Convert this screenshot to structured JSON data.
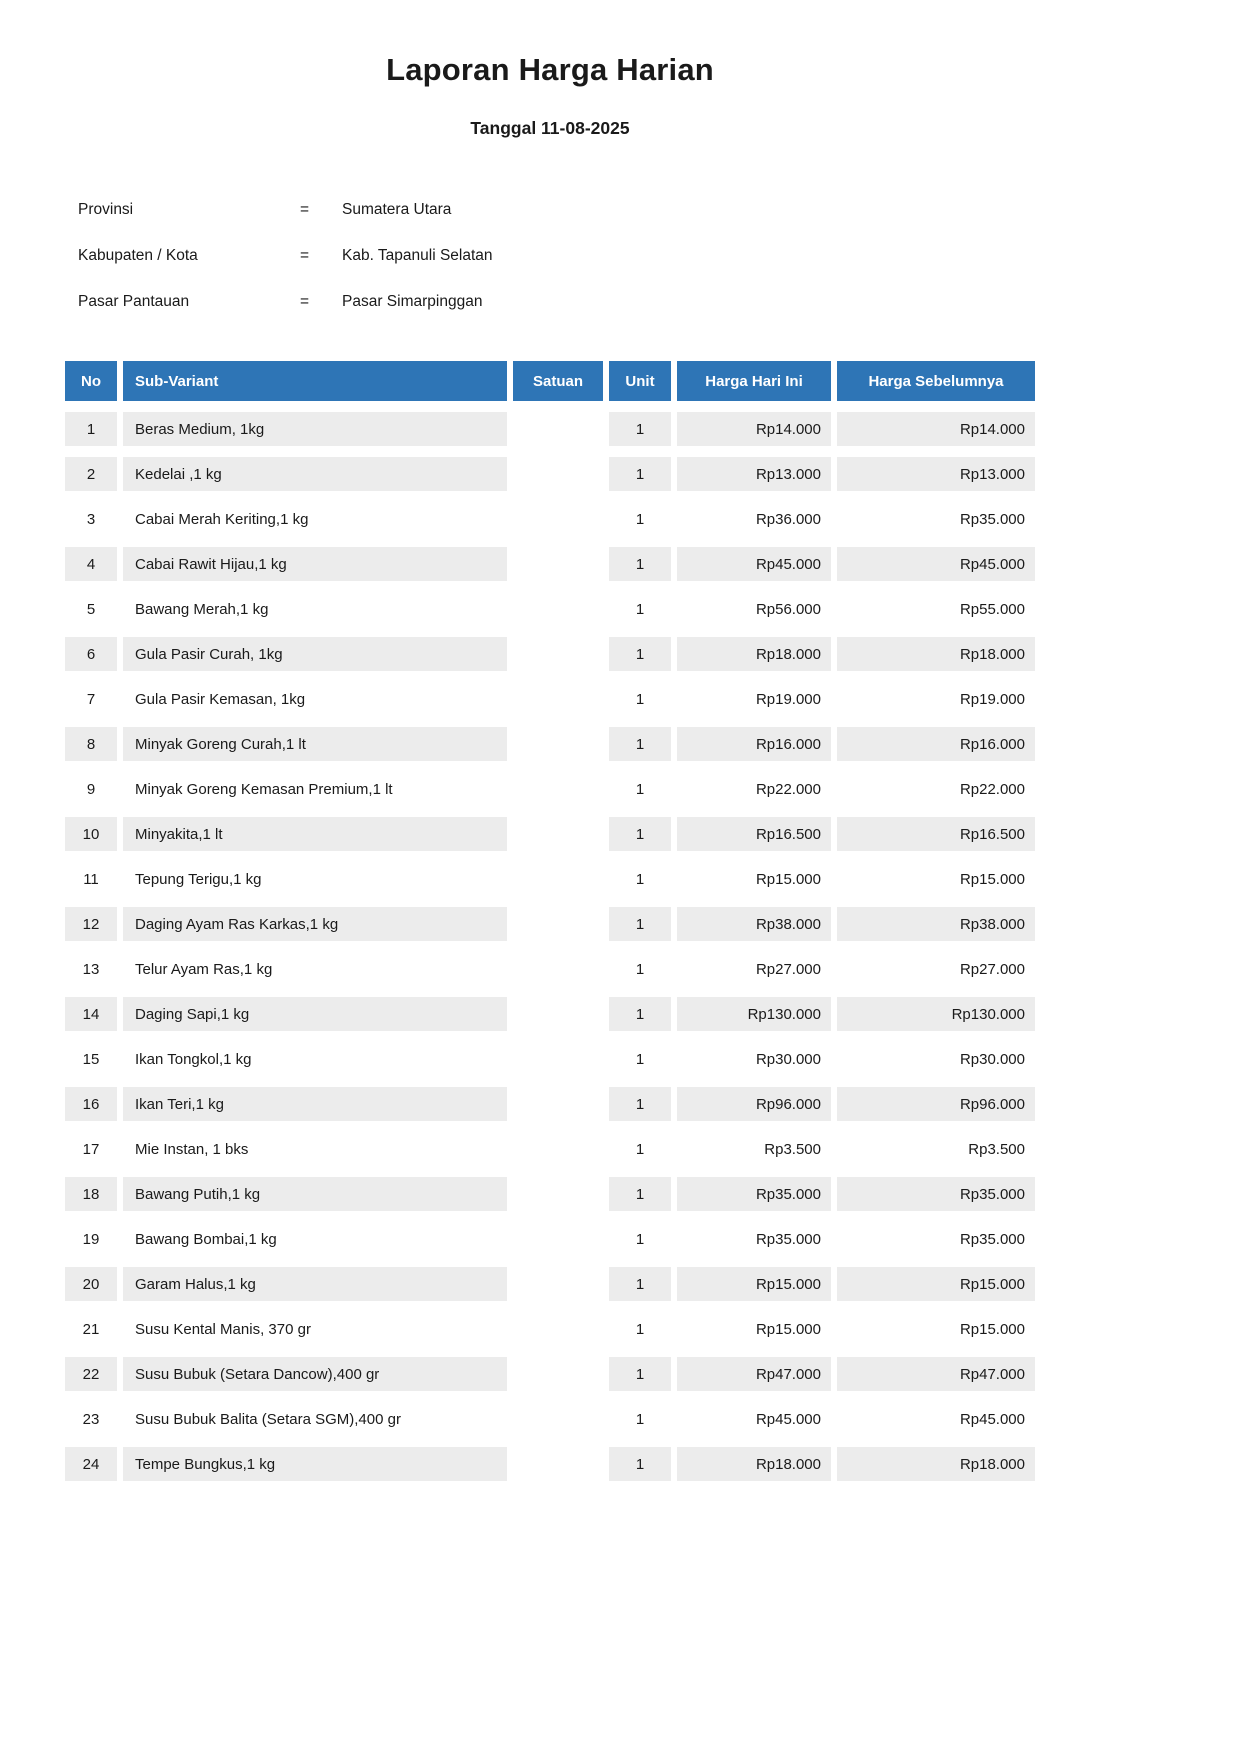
{
  "page": {
    "title": "Laporan Harga Harian",
    "date_line": "Tanggal 11-08-2025"
  },
  "meta": {
    "rows": [
      {
        "label": "Provinsi",
        "separator": "=",
        "value": "Sumatera Utara"
      },
      {
        "label": "Kabupaten / Kota",
        "separator": "=",
        "value": "Kab. Tapanuli Selatan"
      },
      {
        "label": "Pasar Pantauan",
        "separator": "=",
        "value": "Pasar Simarpinggan"
      }
    ]
  },
  "table": {
    "headers": {
      "no": "No",
      "sub_variant": "Sub-Variant",
      "satuan": "Satuan",
      "unit": "Unit",
      "harga_hari_ini": "Harga Hari Ini",
      "harga_sebelumnya": "Harga Sebelumnya"
    },
    "rows": [
      {
        "no": "1",
        "sub_variant": "Beras Medium, 1kg",
        "satuan": "",
        "unit": "1",
        "harga_hari_ini": "Rp14.000",
        "harga_sebelumnya": "Rp14.000"
      },
      {
        "no": "2",
        "sub_variant": "Kedelai ,1 kg",
        "satuan": "",
        "unit": "1",
        "harga_hari_ini": "Rp13.000",
        "harga_sebelumnya": "Rp13.000"
      },
      {
        "no": "3",
        "sub_variant": "Cabai Merah Keriting,1 kg",
        "satuan": "",
        "unit": "1",
        "harga_hari_ini": "Rp36.000",
        "harga_sebelumnya": "Rp35.000"
      },
      {
        "no": "4",
        "sub_variant": "Cabai Rawit Hijau,1 kg",
        "satuan": "",
        "unit": "1",
        "harga_hari_ini": "Rp45.000",
        "harga_sebelumnya": "Rp45.000"
      },
      {
        "no": "5",
        "sub_variant": "Bawang Merah,1 kg",
        "satuan": "",
        "unit": "1",
        "harga_hari_ini": "Rp56.000",
        "harga_sebelumnya": "Rp55.000"
      },
      {
        "no": "6",
        "sub_variant": "Gula Pasir Curah, 1kg",
        "satuan": "",
        "unit": "1",
        "harga_hari_ini": "Rp18.000",
        "harga_sebelumnya": "Rp18.000"
      },
      {
        "no": "7",
        "sub_variant": "Gula Pasir Kemasan, 1kg",
        "satuan": "",
        "unit": "1",
        "harga_hari_ini": "Rp19.000",
        "harga_sebelumnya": "Rp19.000"
      },
      {
        "no": "8",
        "sub_variant": "Minyak Goreng Curah,1 lt",
        "satuan": "",
        "unit": "1",
        "harga_hari_ini": "Rp16.000",
        "harga_sebelumnya": "Rp16.000"
      },
      {
        "no": "9",
        "sub_variant": "Minyak Goreng Kemasan Premium,1 lt",
        "satuan": "",
        "unit": "1",
        "harga_hari_ini": "Rp22.000",
        "harga_sebelumnya": "Rp22.000"
      },
      {
        "no": "10",
        "sub_variant": "Minyakita,1 lt",
        "satuan": "",
        "unit": "1",
        "harga_hari_ini": "Rp16.500",
        "harga_sebelumnya": "Rp16.500"
      },
      {
        "no": "11",
        "sub_variant": "Tepung Terigu,1 kg",
        "satuan": "",
        "unit": "1",
        "harga_hari_ini": "Rp15.000",
        "harga_sebelumnya": "Rp15.000"
      },
      {
        "no": "12",
        "sub_variant": "Daging Ayam Ras Karkas,1 kg",
        "satuan": "",
        "unit": "1",
        "harga_hari_ini": "Rp38.000",
        "harga_sebelumnya": "Rp38.000"
      },
      {
        "no": "13",
        "sub_variant": "Telur Ayam Ras,1 kg",
        "satuan": "",
        "unit": "1",
        "harga_hari_ini": "Rp27.000",
        "harga_sebelumnya": "Rp27.000"
      },
      {
        "no": "14",
        "sub_variant": "Daging Sapi,1 kg",
        "satuan": "",
        "unit": "1",
        "harga_hari_ini": "Rp130.000",
        "harga_sebelumnya": "Rp130.000"
      },
      {
        "no": "15",
        "sub_variant": "Ikan Tongkol,1 kg",
        "satuan": "",
        "unit": "1",
        "harga_hari_ini": "Rp30.000",
        "harga_sebelumnya": "Rp30.000"
      },
      {
        "no": "16",
        "sub_variant": "Ikan Teri,1 kg",
        "satuan": "",
        "unit": "1",
        "harga_hari_ini": "Rp96.000",
        "harga_sebelumnya": "Rp96.000"
      },
      {
        "no": "17",
        "sub_variant": "Mie Instan, 1 bks",
        "satuan": "",
        "unit": "1",
        "harga_hari_ini": "Rp3.500",
        "harga_sebelumnya": "Rp3.500"
      },
      {
        "no": "18",
        "sub_variant": "Bawang Putih,1 kg",
        "satuan": "",
        "unit": "1",
        "harga_hari_ini": "Rp35.000",
        "harga_sebelumnya": "Rp35.000"
      },
      {
        "no": "19",
        "sub_variant": "Bawang Bombai,1 kg",
        "satuan": "",
        "unit": "1",
        "harga_hari_ini": "Rp35.000",
        "harga_sebelumnya": "Rp35.000"
      },
      {
        "no": "20",
        "sub_variant": "Garam Halus,1 kg",
        "satuan": "",
        "unit": "1",
        "harga_hari_ini": "Rp15.000",
        "harga_sebelumnya": "Rp15.000"
      },
      {
        "no": "21",
        "sub_variant": "Susu Kental Manis, 370 gr",
        "satuan": "",
        "unit": "1",
        "harga_hari_ini": "Rp15.000",
        "harga_sebelumnya": "Rp15.000"
      },
      {
        "no": "22",
        "sub_variant": "Susu Bubuk (Setara Dancow),400 gr",
        "satuan": "",
        "unit": "1",
        "harga_hari_ini": "Rp47.000",
        "harga_sebelumnya": "Rp47.000"
      },
      {
        "no": "23",
        "sub_variant": "Susu Bubuk Balita (Setara SGM),400 gr",
        "satuan": "",
        "unit": "1",
        "harga_hari_ini": "Rp45.000",
        "harga_sebelumnya": "Rp45.000"
      },
      {
        "no": "24",
        "sub_variant": "Tempe Bungkus,1 kg",
        "satuan": "",
        "unit": "1",
        "harga_hari_ini": "Rp18.000",
        "harga_sebelumnya": "Rp18.000"
      }
    ]
  },
  "colors": {
    "header_bg": "#2E75B6",
    "header_text": "#FFFFFF",
    "row_shaded_bg": "#ECECEC",
    "text": "#1A1A1A"
  }
}
